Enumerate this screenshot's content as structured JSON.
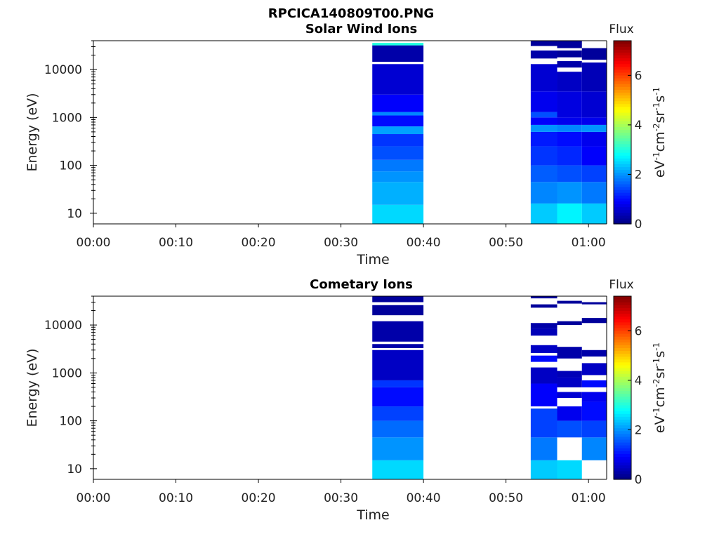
{
  "figure": {
    "title": "RPCICA140809T00.PNG"
  },
  "chart_data": [
    {
      "type": "heatmap",
      "title": "Solar Wind Ions",
      "xlabel": "Time",
      "ylabel": "Energy (eV)",
      "x_ticks": [
        "00:00",
        "00:10",
        "00:20",
        "00:30",
        "00:40",
        "00:50",
        "01:00"
      ],
      "x_range_minutes": [
        0,
        62.2
      ],
      "y_scale": "log",
      "y_ticks": [
        "10",
        "100",
        "1000",
        "10000"
      ],
      "y_range_eV": [
        6,
        40000
      ],
      "colorbar": {
        "title": "Flux",
        "label": "eV-1cm-2sr-1s-1",
        "ticks": [
          "0",
          "2",
          "4",
          "6"
        ],
        "range": [
          0,
          7.4
        ],
        "colormap": "jet"
      },
      "columns": [
        {
          "t_start": 33.8,
          "t_end": 40.0,
          "bands": [
            {
              "e_lo": 6,
              "e_hi": 15,
              "v": 2.5
            },
            {
              "e_hi": 45,
              "v": 2.2
            },
            {
              "e_hi": 75,
              "v": 2.0
            },
            {
              "e_hi": 130,
              "v": 1.8
            },
            {
              "e_hi": 250,
              "v": 1.5
            },
            {
              "e_hi": 450,
              "v": 1.3
            },
            {
              "e_hi": 650,
              "v": 2.1
            },
            {
              "e_hi": 1100,
              "v": 1.0
            },
            {
              "e_hi": 1300,
              "v": 1.9
            },
            {
              "e_hi": 3000,
              "v": 0.9
            },
            {
              "e_hi": 13000,
              "v": 0.6
            },
            {
              "e_hi": 14500,
              "v": null
            },
            {
              "e_hi": 32000,
              "v": 0.3
            },
            {
              "e_hi": 36000,
              "v": 3.0
            }
          ]
        },
        {
          "t_start": 53.0,
          "t_end": 56.2,
          "bands": [
            {
              "e_lo": 6,
              "e_hi": 16,
              "v": 2.4
            },
            {
              "e_hi": 45,
              "v": 1.9
            },
            {
              "e_hi": 100,
              "v": 1.6
            },
            {
              "e_hi": 250,
              "v": 1.3
            },
            {
              "e_hi": 500,
              "v": 1.1
            },
            {
              "e_hi": 700,
              "v": 2.0
            },
            {
              "e_hi": 1000,
              "v": 0.9
            },
            {
              "e_hi": 1300,
              "v": 1.5
            },
            {
              "e_hi": 3500,
              "v": 0.8
            },
            {
              "e_hi": 13000,
              "v": 0.6
            },
            {
              "e_hi": 17000,
              "v": null
            },
            {
              "e_hi": 25000,
              "v": 0.3
            },
            {
              "e_hi": 31000,
              "v": null
            },
            {
              "e_hi": 40000,
              "v": 0.2
            }
          ]
        },
        {
          "t_start": 56.2,
          "t_end": 59.2,
          "bands": [
            {
              "e_lo": 6,
              "e_hi": 16,
              "v": 2.7
            },
            {
              "e_hi": 45,
              "v": 2.0
            },
            {
              "e_hi": 100,
              "v": 1.5
            },
            {
              "e_hi": 250,
              "v": 1.2
            },
            {
              "e_hi": 500,
              "v": 1.0
            },
            {
              "e_hi": 700,
              "v": 1.9
            },
            {
              "e_hi": 1000,
              "v": 0.8
            },
            {
              "e_hi": 3500,
              "v": 0.7
            },
            {
              "e_hi": 9000,
              "v": 0.5
            },
            {
              "e_hi": 11000,
              "v": null
            },
            {
              "e_hi": 15000,
              "v": 0.3
            },
            {
              "e_hi": 18000,
              "v": null
            },
            {
              "e_hi": 25000,
              "v": 0.2
            },
            {
              "e_hi": 28000,
              "v": null
            },
            {
              "e_hi": 40000,
              "v": 0.2
            }
          ]
        },
        {
          "t_start": 59.2,
          "t_end": 62.2,
          "bands": [
            {
              "e_lo": 6,
              "e_hi": 16,
              "v": 2.4
            },
            {
              "e_hi": 45,
              "v": 1.8
            },
            {
              "e_hi": 100,
              "v": 1.4
            },
            {
              "e_hi": 250,
              "v": 0.9
            },
            {
              "e_hi": 500,
              "v": 0.8
            },
            {
              "e_hi": 700,
              "v": 2.0
            },
            {
              "e_hi": 1000,
              "v": 0.8
            },
            {
              "e_hi": 3500,
              "v": 0.6
            },
            {
              "e_hi": 14000,
              "v": 0.4
            },
            {
              "e_hi": 16000,
              "v": null
            },
            {
              "e_hi": 28000,
              "v": 0.2
            },
            {
              "e_hi": 40000,
              "v": null
            }
          ]
        }
      ]
    },
    {
      "type": "heatmap",
      "title": "Cometary Ions",
      "xlabel": "Time",
      "ylabel": "Energy (eV)",
      "x_ticks": [
        "00:00",
        "00:10",
        "00:20",
        "00:30",
        "00:40",
        "00:50",
        "01:00"
      ],
      "x_range_minutes": [
        0,
        62.2
      ],
      "y_scale": "log",
      "y_ticks": [
        "10",
        "100",
        "1000",
        "10000"
      ],
      "y_range_eV": [
        6,
        40000
      ],
      "colorbar": {
        "title": "Flux",
        "label": "eV-1cm-2sr-1s-1",
        "ticks": [
          "0",
          "2",
          "4",
          "6"
        ],
        "range": [
          0,
          7.4
        ],
        "colormap": "jet"
      },
      "columns": [
        {
          "t_start": 33.8,
          "t_end": 40.0,
          "bands": [
            {
              "e_lo": 6,
              "e_hi": 15,
              "v": 2.5
            },
            {
              "e_hi": 45,
              "v": 2.0
            },
            {
              "e_hi": 100,
              "v": 1.7
            },
            {
              "e_hi": 200,
              "v": 1.4
            },
            {
              "e_hi": 500,
              "v": 1.0
            },
            {
              "e_hi": 700,
              "v": 1.3
            },
            {
              "e_hi": 3000,
              "v": 0.5
            },
            {
              "e_hi": 3300,
              "v": null
            },
            {
              "e_hi": 4000,
              "v": 0.3
            },
            {
              "e_hi": 4500,
              "v": null
            },
            {
              "e_hi": 12000,
              "v": 0.3
            },
            {
              "e_hi": 16000,
              "v": null
            },
            {
              "e_hi": 26000,
              "v": 0.2
            },
            {
              "e_hi": 30000,
              "v": null
            },
            {
              "e_hi": 40000,
              "v": 0.2
            }
          ]
        },
        {
          "t_start": 53.0,
          "t_end": 56.2,
          "bands": [
            {
              "e_lo": 6,
              "e_hi": 15,
              "v": 2.4
            },
            {
              "e_hi": 45,
              "v": 1.8
            },
            {
              "e_hi": 180,
              "v": 1.4
            },
            {
              "e_hi": 200,
              "v": null
            },
            {
              "e_hi": 600,
              "v": 0.9
            },
            {
              "e_hi": 1300,
              "v": 0.5
            },
            {
              "e_hi": 1700,
              "v": null
            },
            {
              "e_hi": 2300,
              "v": 1.0
            },
            {
              "e_hi": 2600,
              "v": null
            },
            {
              "e_hi": 3800,
              "v": 0.5
            },
            {
              "e_hi": 6000,
              "v": null
            },
            {
              "e_hi": 8500,
              "v": 0.4
            },
            {
              "e_hi": 11000,
              "v": 0.3
            },
            {
              "e_hi": 23000,
              "v": null
            },
            {
              "e_hi": 27000,
              "v": 0.2
            },
            {
              "e_hi": 36000,
              "v": null
            },
            {
              "e_hi": 40000,
              "v": 0.2
            }
          ]
        },
        {
          "t_start": 56.2,
          "t_end": 59.2,
          "bands": [
            {
              "e_lo": 6,
              "e_hi": 15,
              "v": 2.5
            },
            {
              "e_hi": 45,
              "v": null
            },
            {
              "e_hi": 100,
              "v": 1.5
            },
            {
              "e_hi": 200,
              "v": 0.8
            },
            {
              "e_hi": 300,
              "v": null
            },
            {
              "e_hi": 400,
              "v": 0.6
            },
            {
              "e_hi": 500,
              "v": null
            },
            {
              "e_hi": 800,
              "v": 0.5
            },
            {
              "e_hi": 1100,
              "v": 0.4
            },
            {
              "e_hi": 2000,
              "v": null
            },
            {
              "e_hi": 3500,
              "v": 0.3
            },
            {
              "e_hi": 10000,
              "v": null
            },
            {
              "e_hi": 12000,
              "v": 0.2
            },
            {
              "e_hi": 28000,
              "v": null
            },
            {
              "e_hi": 32000,
              "v": 0.2
            },
            {
              "e_hi": 40000,
              "v": null
            }
          ]
        },
        {
          "t_start": 59.2,
          "t_end": 62.2,
          "bands": [
            {
              "e_lo": 6,
              "e_hi": 15,
              "v": null
            },
            {
              "e_hi": 45,
              "v": 1.9
            },
            {
              "e_hi": 100,
              "v": 1.4
            },
            {
              "e_hi": 250,
              "v": 1.0
            },
            {
              "e_hi": 400,
              "v": 0.8
            },
            {
              "e_hi": 500,
              "v": null
            },
            {
              "e_hi": 700,
              "v": 1.0
            },
            {
              "e_hi": 900,
              "v": null
            },
            {
              "e_hi": 1600,
              "v": 0.5
            },
            {
              "e_hi": 2200,
              "v": null
            },
            {
              "e_hi": 3000,
              "v": 0.3
            },
            {
              "e_hi": 11000,
              "v": null
            },
            {
              "e_hi": 14000,
              "v": 0.2
            },
            {
              "e_hi": 27000,
              "v": null
            },
            {
              "e_hi": 30000,
              "v": 0.2
            },
            {
              "e_hi": 40000,
              "v": null
            }
          ]
        }
      ]
    }
  ]
}
